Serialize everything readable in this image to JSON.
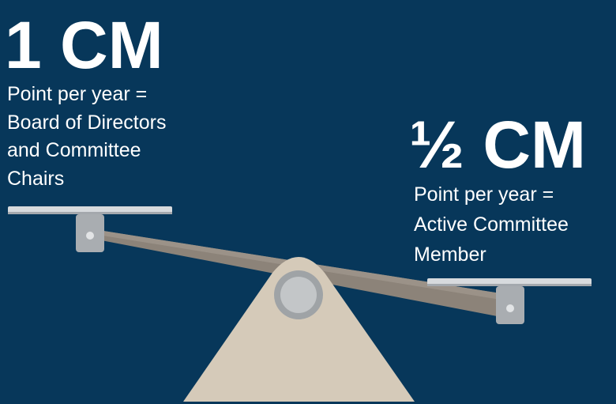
{
  "left": {
    "heading": "1 CM",
    "lines": [
      "Point per year =",
      "Board of Directors",
      "and Committee",
      "Chairs"
    ]
  },
  "right": {
    "heading": "½ CM",
    "lines": [
      "Point per year =",
      "Active Committee",
      "Member"
    ]
  }
}
